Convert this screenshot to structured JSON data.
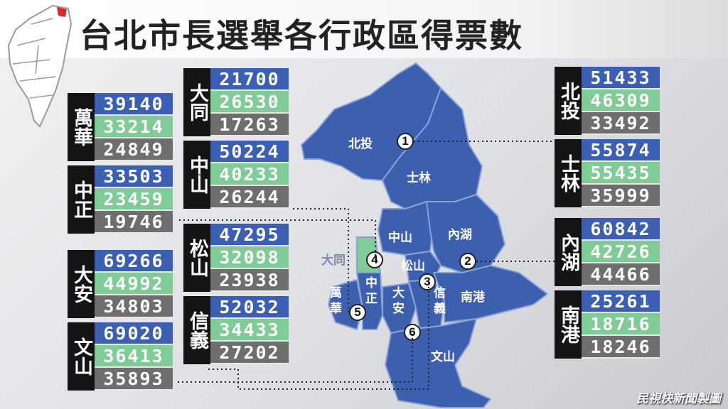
{
  "title": "台北市長選舉各行政區得票數",
  "colors": {
    "candidate_1": "#3b5fb3",
    "candidate_2": "#7fcc96",
    "candidate_3": "#6e6e6e",
    "map_fill": "#3c5fae",
    "datong_fill": "#7fcc96"
  },
  "districts": [
    {
      "name": "萬華",
      "values": [
        "39140",
        "33214",
        "24849"
      ]
    },
    {
      "name": "中正",
      "values": [
        "33503",
        "23459",
        "19746"
      ]
    },
    {
      "name": "大安",
      "values": [
        "69266",
        "44992",
        "34803"
      ]
    },
    {
      "name": "文山",
      "values": [
        "69020",
        "36413",
        "35893"
      ]
    },
    {
      "name": "大同",
      "values": [
        "21700",
        "26530",
        "17263"
      ]
    },
    {
      "name": "中山",
      "values": [
        "50224",
        "40233",
        "26244"
      ]
    },
    {
      "name": "松山",
      "values": [
        "47295",
        "32098",
        "23938"
      ]
    },
    {
      "name": "信義",
      "values": [
        "52032",
        "34433",
        "27202"
      ]
    },
    {
      "name": "北投",
      "values": [
        "51433",
        "46309",
        "33492"
      ]
    },
    {
      "name": "士林",
      "values": [
        "55874",
        "55435",
        "35999"
      ]
    },
    {
      "name": "內湖",
      "values": [
        "60842",
        "42726",
        "44466"
      ]
    },
    {
      "name": "南港",
      "values": [
        "25261",
        "18716",
        "18246"
      ]
    }
  ],
  "map_labels": {
    "beitou": "北投",
    "shilin": "士林",
    "zhongshan": "中山",
    "neihu": "內湖",
    "datong": "大同",
    "songshan": "松山",
    "wanhua": "萬華",
    "zhongzheng": "中正",
    "daan": "大安",
    "xinyi": "信義",
    "nangang": "南港",
    "wenshan": "文山"
  },
  "markers": [
    "1",
    "2",
    "3",
    "4",
    "5",
    "6"
  ],
  "logo_text": "民視快新聞製圖",
  "chart_data": {
    "type": "table",
    "title": "台北市長選舉各行政區得票數",
    "categories": [
      "萬華",
      "中正",
      "大安",
      "文山",
      "大同",
      "中山",
      "松山",
      "信義",
      "北投",
      "士林",
      "內湖",
      "南港"
    ],
    "series": [
      {
        "values": [
          39140,
          33503,
          69266,
          69020,
          21700,
          50224,
          47295,
          52032,
          51433,
          55874,
          60842,
          25261
        ]
      },
      {
        "values": [
          33214,
          23459,
          44992,
          36413,
          26530,
          40233,
          32098,
          34433,
          46309,
          55435,
          42726,
          18716
        ]
      },
      {
        "values": [
          24849,
          19746,
          34803,
          35893,
          17263,
          26244,
          23938,
          27202,
          33492,
          35999,
          44466,
          18246
        ]
      }
    ]
  }
}
